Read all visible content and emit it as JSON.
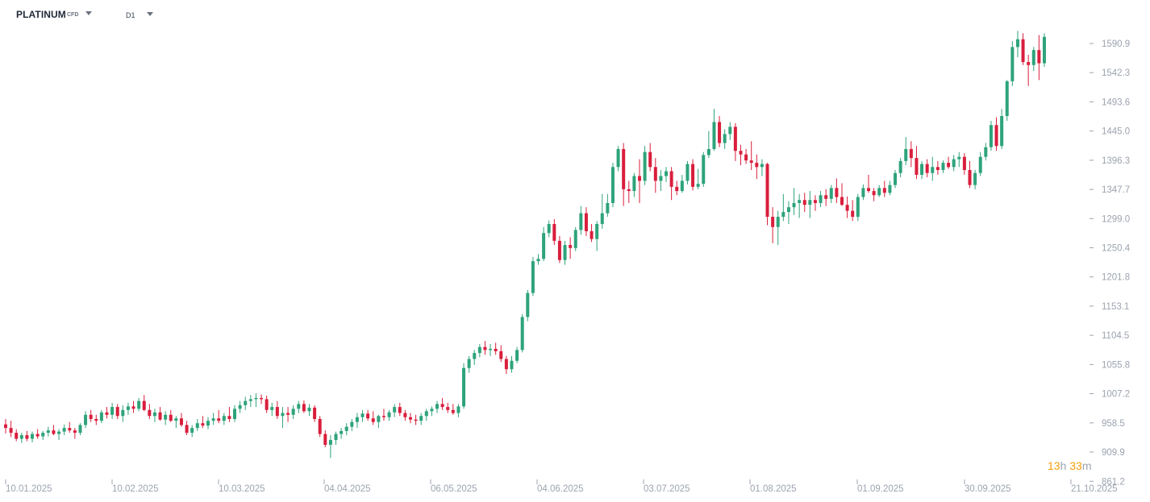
{
  "header": {
    "symbol": "PLATINUM",
    "instrument_type": "CFD",
    "timeframe": "D1"
  },
  "countdown": {
    "hours": "13",
    "h_unit": "h",
    "minutes": "33",
    "m_unit": "m"
  },
  "colors": {
    "up": "#2ea37a",
    "down": "#d91e3c",
    "axis_text": "#9ca3af",
    "countdown": "#f59e0b"
  },
  "chart_data": {
    "type": "candlestick",
    "y_ticks": [
      "1590.9",
      "1542.3",
      "1493.6",
      "1445.0",
      "1396.3",
      "1347.7",
      "1299.0",
      "1250.4",
      "1201.8",
      "1153.1",
      "1104.5",
      "1055.8",
      "1007.2",
      "958.5",
      "909.9",
      "861.2"
    ],
    "ylim": [
      861.2,
      1628
    ],
    "x_labels": [
      "10.01.2025",
      "10.02.2025",
      "10.03.2025",
      "04.04.2025",
      "06.05.2025",
      "04.06.2025",
      "03.07.2025",
      "01.08.2025",
      "01.09.2025",
      "30.09.2025",
      "21.10.2025"
    ],
    "ohlc": [
      [
        956,
        965,
        941,
        950
      ],
      [
        950,
        962,
        935,
        942
      ],
      [
        942,
        948,
        928,
        932
      ],
      [
        932,
        942,
        925,
        938
      ],
      [
        938,
        945,
        928,
        932
      ],
      [
        932,
        944,
        926,
        940
      ],
      [
        940,
        948,
        932,
        936
      ],
      [
        936,
        945,
        930,
        942
      ],
      [
        942,
        952,
        936,
        946
      ],
      [
        946,
        955,
        938,
        940
      ],
      [
        940,
        948,
        930,
        944
      ],
      [
        944,
        956,
        938,
        950
      ],
      [
        950,
        960,
        942,
        946
      ],
      [
        946,
        950,
        932,
        942
      ],
      [
        942,
        958,
        938,
        955
      ],
      [
        955,
        978,
        950,
        972
      ],
      [
        972,
        980,
        960,
        965
      ],
      [
        965,
        972,
        955,
        962
      ],
      [
        962,
        980,
        958,
        976
      ],
      [
        976,
        985,
        966,
        972
      ],
      [
        972,
        992,
        965,
        985
      ],
      [
        985,
        990,
        965,
        970
      ],
      [
        970,
        988,
        960,
        980
      ],
      [
        980,
        992,
        972,
        986
      ],
      [
        986,
        995,
        975,
        982
      ],
      [
        982,
        1000,
        978,
        995
      ],
      [
        995,
        1005,
        978,
        980
      ],
      [
        980,
        990,
        965,
        970
      ],
      [
        970,
        982,
        960,
        976
      ],
      [
        976,
        985,
        962,
        964
      ],
      [
        964,
        978,
        955,
        972
      ],
      [
        972,
        980,
        960,
        962
      ],
      [
        962,
        970,
        950,
        966
      ],
      [
        966,
        975,
        952,
        955
      ],
      [
        955,
        962,
        938,
        942
      ],
      [
        942,
        955,
        935,
        950
      ],
      [
        950,
        965,
        945,
        958
      ],
      [
        958,
        970,
        950,
        954
      ],
      [
        954,
        968,
        948,
        962
      ],
      [
        962,
        975,
        955,
        966
      ],
      [
        966,
        980,
        958,
        962
      ],
      [
        962,
        975,
        955,
        970
      ],
      [
        970,
        985,
        960,
        965
      ],
      [
        965,
        988,
        960,
        982
      ],
      [
        982,
        995,
        975,
        988
      ],
      [
        988,
        1002,
        980,
        995
      ],
      [
        995,
        1005,
        985,
        998
      ],
      [
        998,
        1008,
        985,
        1000
      ],
      [
        1000,
        1006,
        990,
        998
      ],
      [
        998,
        1004,
        975,
        980
      ],
      [
        980,
        992,
        970,
        985
      ],
      [
        985,
        995,
        965,
        970
      ],
      [
        970,
        985,
        950,
        975
      ],
      [
        975,
        985,
        960,
        972
      ],
      [
        972,
        988,
        965,
        982
      ],
      [
        982,
        995,
        975,
        990
      ],
      [
        990,
        996,
        975,
        978
      ],
      [
        978,
        990,
        970,
        984
      ],
      [
        984,
        988,
        960,
        965
      ],
      [
        965,
        970,
        935,
        940
      ],
      [
        940,
        946,
        918,
        922
      ],
      [
        922,
        938,
        900,
        930
      ],
      [
        930,
        944,
        922,
        940
      ],
      [
        940,
        950,
        932,
        945
      ],
      [
        945,
        958,
        938,
        952
      ],
      [
        952,
        965,
        945,
        960
      ],
      [
        960,
        975,
        950,
        968
      ],
      [
        968,
        980,
        960,
        974
      ],
      [
        974,
        980,
        962,
        966
      ],
      [
        966,
        978,
        955,
        960
      ],
      [
        960,
        972,
        950,
        970
      ],
      [
        970,
        982,
        962,
        968
      ],
      [
        968,
        980,
        962,
        976
      ],
      [
        976,
        990,
        968,
        985
      ],
      [
        985,
        992,
        970,
        975
      ],
      [
        975,
        980,
        962,
        968
      ],
      [
        968,
        975,
        958,
        964
      ],
      [
        964,
        972,
        955,
        962
      ],
      [
        962,
        975,
        955,
        970
      ],
      [
        970,
        982,
        962,
        978
      ],
      [
        978,
        986,
        970,
        982
      ],
      [
        982,
        995,
        975,
        990
      ],
      [
        990,
        1000,
        980,
        985
      ],
      [
        985,
        992,
        975,
        980
      ],
      [
        980,
        990,
        972,
        975
      ],
      [
        975,
        990,
        968,
        986
      ],
      [
        986,
        1058,
        982,
        1050
      ],
      [
        1050,
        1070,
        1042,
        1065
      ],
      [
        1065,
        1080,
        1055,
        1075
      ],
      [
        1075,
        1090,
        1068,
        1085
      ],
      [
        1085,
        1095,
        1072,
        1080
      ],
      [
        1080,
        1090,
        1070,
        1082
      ],
      [
        1082,
        1092,
        1072,
        1078
      ],
      [
        1078,
        1088,
        1060,
        1065
      ],
      [
        1065,
        1070,
        1040,
        1048
      ],
      [
        1048,
        1070,
        1042,
        1062
      ],
      [
        1062,
        1085,
        1058,
        1080
      ],
      [
        1080,
        1140,
        1076,
        1135
      ],
      [
        1135,
        1180,
        1128,
        1175
      ],
      [
        1175,
        1235,
        1170,
        1228
      ],
      [
        1228,
        1240,
        1222,
        1232
      ],
      [
        1232,
        1285,
        1228,
        1275
      ],
      [
        1275,
        1296,
        1268,
        1290
      ],
      [
        1290,
        1298,
        1255,
        1262
      ],
      [
        1262,
        1270,
        1225,
        1230
      ],
      [
        1230,
        1262,
        1222,
        1255
      ],
      [
        1255,
        1268,
        1232,
        1250
      ],
      [
        1250,
        1285,
        1245,
        1280
      ],
      [
        1280,
        1320,
        1272,
        1308
      ],
      [
        1308,
        1318,
        1270,
        1278
      ],
      [
        1278,
        1290,
        1260,
        1265
      ],
      [
        1265,
        1295,
        1245,
        1290
      ],
      [
        1290,
        1340,
        1282,
        1308
      ],
      [
        1308,
        1340,
        1302,
        1325
      ],
      [
        1325,
        1392,
        1318,
        1385
      ],
      [
        1385,
        1420,
        1378,
        1415
      ],
      [
        1415,
        1425,
        1320,
        1348
      ],
      [
        1348,
        1362,
        1325,
        1345
      ],
      [
        1345,
        1375,
        1335,
        1370
      ],
      [
        1370,
        1398,
        1325,
        1362
      ],
      [
        1362,
        1420,
        1355,
        1410
      ],
      [
        1410,
        1425,
        1378,
        1385
      ],
      [
        1385,
        1400,
        1342,
        1362
      ],
      [
        1362,
        1380,
        1345,
        1370
      ],
      [
        1370,
        1385,
        1360,
        1378
      ],
      [
        1378,
        1385,
        1330,
        1352
      ],
      [
        1352,
        1362,
        1338,
        1345
      ],
      [
        1345,
        1372,
        1342,
        1362
      ],
      [
        1362,
        1395,
        1356,
        1390
      ],
      [
        1390,
        1398,
        1346,
        1352
      ],
      [
        1352,
        1382,
        1348,
        1357
      ],
      [
        1357,
        1410,
        1352,
        1405
      ],
      [
        1405,
        1445,
        1400,
        1415
      ],
      [
        1415,
        1482,
        1412,
        1460
      ],
      [
        1460,
        1470,
        1418,
        1425
      ],
      [
        1425,
        1448,
        1415,
        1440
      ],
      [
        1440,
        1460,
        1430,
        1452
      ],
      [
        1452,
        1458,
        1395,
        1412
      ],
      [
        1412,
        1422,
        1388,
        1406
      ],
      [
        1406,
        1415,
        1390,
        1396
      ],
      [
        1396,
        1428,
        1380,
        1392
      ],
      [
        1392,
        1406,
        1365,
        1385
      ],
      [
        1385,
        1398,
        1370,
        1390
      ],
      [
        1390,
        1392,
        1288,
        1302
      ],
      [
        1302,
        1318,
        1258,
        1285
      ],
      [
        1285,
        1312,
        1255,
        1302
      ],
      [
        1302,
        1340,
        1295,
        1310
      ],
      [
        1310,
        1328,
        1290,
        1318
      ],
      [
        1318,
        1350,
        1305,
        1325
      ],
      [
        1325,
        1340,
        1300,
        1330
      ],
      [
        1330,
        1342,
        1310,
        1322
      ],
      [
        1322,
        1345,
        1300,
        1330
      ],
      [
        1330,
        1338,
        1312,
        1325
      ],
      [
        1325,
        1345,
        1318,
        1338
      ],
      [
        1338,
        1348,
        1320,
        1332
      ],
      [
        1332,
        1355,
        1325,
        1350
      ],
      [
        1350,
        1366,
        1325,
        1335
      ],
      [
        1335,
        1358,
        1320,
        1322
      ],
      [
        1322,
        1336,
        1300,
        1312
      ],
      [
        1312,
        1330,
        1295,
        1302
      ],
      [
        1302,
        1340,
        1295,
        1335
      ],
      [
        1335,
        1356,
        1330,
        1350
      ],
      [
        1350,
        1372,
        1342,
        1345
      ],
      [
        1345,
        1350,
        1328,
        1338
      ],
      [
        1338,
        1355,
        1335,
        1350
      ],
      [
        1350,
        1362,
        1335,
        1342
      ],
      [
        1342,
        1362,
        1338,
        1355
      ],
      [
        1355,
        1380,
        1350,
        1375
      ],
      [
        1375,
        1400,
        1368,
        1395
      ],
      [
        1395,
        1435,
        1388,
        1415
      ],
      [
        1415,
        1428,
        1385,
        1400
      ],
      [
        1400,
        1420,
        1365,
        1372
      ],
      [
        1372,
        1395,
        1365,
        1390
      ],
      [
        1390,
        1398,
        1368,
        1375
      ],
      [
        1375,
        1402,
        1362,
        1385
      ],
      [
        1385,
        1395,
        1372,
        1380
      ],
      [
        1380,
        1396,
        1375,
        1392
      ],
      [
        1392,
        1402,
        1382,
        1385
      ],
      [
        1385,
        1405,
        1378,
        1398
      ],
      [
        1398,
        1410,
        1385,
        1402
      ],
      [
        1402,
        1408,
        1372,
        1380
      ],
      [
        1380,
        1395,
        1350,
        1355
      ],
      [
        1355,
        1380,
        1348,
        1375
      ],
      [
        1375,
        1410,
        1370,
        1402
      ],
      [
        1402,
        1425,
        1396,
        1418
      ],
      [
        1418,
        1462,
        1412,
        1455
      ],
      [
        1455,
        1468,
        1412,
        1420
      ],
      [
        1420,
        1482,
        1415,
        1470
      ],
      [
        1470,
        1530,
        1462,
        1528
      ],
      [
        1528,
        1595,
        1520,
        1585
      ],
      [
        1585,
        1612,
        1568,
        1598
      ],
      [
        1598,
        1608,
        1555,
        1560
      ],
      [
        1560,
        1572,
        1520,
        1555
      ],
      [
        1555,
        1585,
        1545,
        1580
      ],
      [
        1580,
        1605,
        1530,
        1558
      ],
      [
        1558,
        1608,
        1552,
        1602
      ]
    ]
  }
}
